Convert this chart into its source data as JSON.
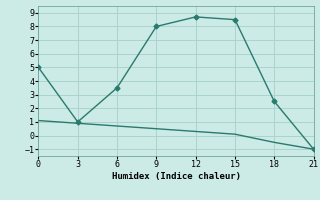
{
  "line1_x": [
    0,
    3,
    6,
    9,
    12,
    15,
    18,
    21
  ],
  "line1_y": [
    5,
    1,
    3.5,
    8,
    8.7,
    8.5,
    2.5,
    -1
  ],
  "line2_x": [
    0,
    3,
    6,
    9,
    12,
    15,
    18,
    21
  ],
  "line2_y": [
    1.1,
    0.9,
    0.7,
    0.5,
    0.3,
    0.1,
    -0.5,
    -1.0
  ],
  "line_color": "#2a7a6e",
  "bg_color": "#cceae6",
  "grid_color": "#aad4cf",
  "xlabel": "Humidex (Indice chaleur)",
  "xlim": [
    0,
    21
  ],
  "ylim": [
    -1.5,
    9.5
  ],
  "xticks": [
    0,
    3,
    6,
    9,
    12,
    15,
    18,
    21
  ],
  "yticks": [
    -1,
    0,
    1,
    2,
    3,
    4,
    5,
    6,
    7,
    8,
    9
  ],
  "marker": "D",
  "marker_size": 2.5,
  "line_width": 1.0
}
